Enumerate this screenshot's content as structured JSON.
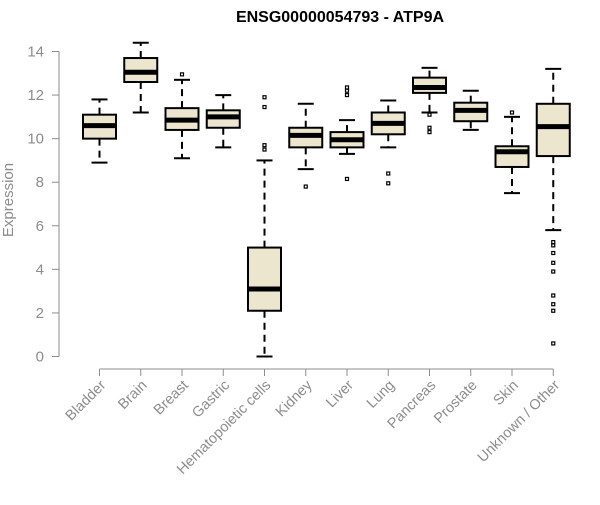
{
  "chart_data": {
    "type": "boxplot",
    "title": "ENSG00000054793 - ATP9A",
    "xlabel": "",
    "ylabel": "Expression",
    "ylim": [
      0,
      14
    ],
    "yticks": [
      0,
      2,
      4,
      6,
      8,
      10,
      12,
      14
    ],
    "grid": false,
    "colors": {
      "box_fill": "#ede6cf",
      "line": "#000000",
      "axis": "#8c8c8c"
    },
    "categories": [
      "Bladder",
      "Brain",
      "Breast",
      "Gastric",
      "Hematopoietic cells",
      "Kidney",
      "Liver",
      "Lung",
      "Pancreas",
      "Prostate",
      "Skin",
      "Unknown / Other"
    ],
    "boxes": [
      {
        "category": "Bladder",
        "whisker_low": 8.9,
        "q1": 10.0,
        "median": 10.6,
        "q3": 11.1,
        "whisker_high": 11.8,
        "outliers": []
      },
      {
        "category": "Brain",
        "whisker_low": 11.2,
        "q1": 12.6,
        "median": 13.05,
        "q3": 13.7,
        "whisker_high": 14.4,
        "outliers": []
      },
      {
        "category": "Breast",
        "whisker_low": 9.1,
        "q1": 10.4,
        "median": 10.85,
        "q3": 11.4,
        "whisker_high": 12.7,
        "outliers": [
          12.95
        ]
      },
      {
        "category": "Gastric",
        "whisker_low": 9.6,
        "q1": 10.5,
        "median": 11.0,
        "q3": 11.3,
        "whisker_high": 12.0,
        "outliers": []
      },
      {
        "category": "Hematopoietic cells",
        "whisker_low": 0.0,
        "q1": 2.1,
        "median": 3.1,
        "q3": 5.0,
        "whisker_high": 9.0,
        "outliers": [
          9.5,
          9.7,
          11.45,
          11.9
        ]
      },
      {
        "category": "Kidney",
        "whisker_low": 8.6,
        "q1": 9.6,
        "median": 10.15,
        "q3": 10.5,
        "whisker_high": 11.6,
        "outliers": [
          7.8
        ]
      },
      {
        "category": "Liver",
        "whisker_low": 9.3,
        "q1": 9.6,
        "median": 9.95,
        "q3": 10.3,
        "whisker_high": 10.85,
        "outliers": [
          8.15,
          12.0,
          12.2,
          12.35
        ]
      },
      {
        "category": "Lung",
        "whisker_low": 9.6,
        "q1": 10.2,
        "median": 10.7,
        "q3": 11.2,
        "whisker_high": 11.75,
        "outliers": [
          7.95,
          8.4
        ]
      },
      {
        "category": "Pancreas",
        "whisker_low": 11.2,
        "q1": 12.1,
        "median": 12.35,
        "q3": 12.8,
        "whisker_high": 13.25,
        "outliers": [
          10.3,
          10.5,
          11.1
        ]
      },
      {
        "category": "Prostate",
        "whisker_low": 10.4,
        "q1": 10.8,
        "median": 11.3,
        "q3": 11.65,
        "whisker_high": 12.2,
        "outliers": []
      },
      {
        "category": "Skin",
        "whisker_low": 7.5,
        "q1": 8.7,
        "median": 9.4,
        "q3": 9.65,
        "whisker_high": 11.0,
        "outliers": [
          11.2
        ]
      },
      {
        "category": "Unknown / Other",
        "whisker_low": 5.8,
        "q1": 9.2,
        "median": 10.55,
        "q3": 11.6,
        "whisker_high": 13.2,
        "outliers": [
          0.6,
          2.1,
          2.4,
          2.8,
          3.9,
          4.3,
          4.75,
          5.1,
          5.25
        ]
      }
    ]
  }
}
